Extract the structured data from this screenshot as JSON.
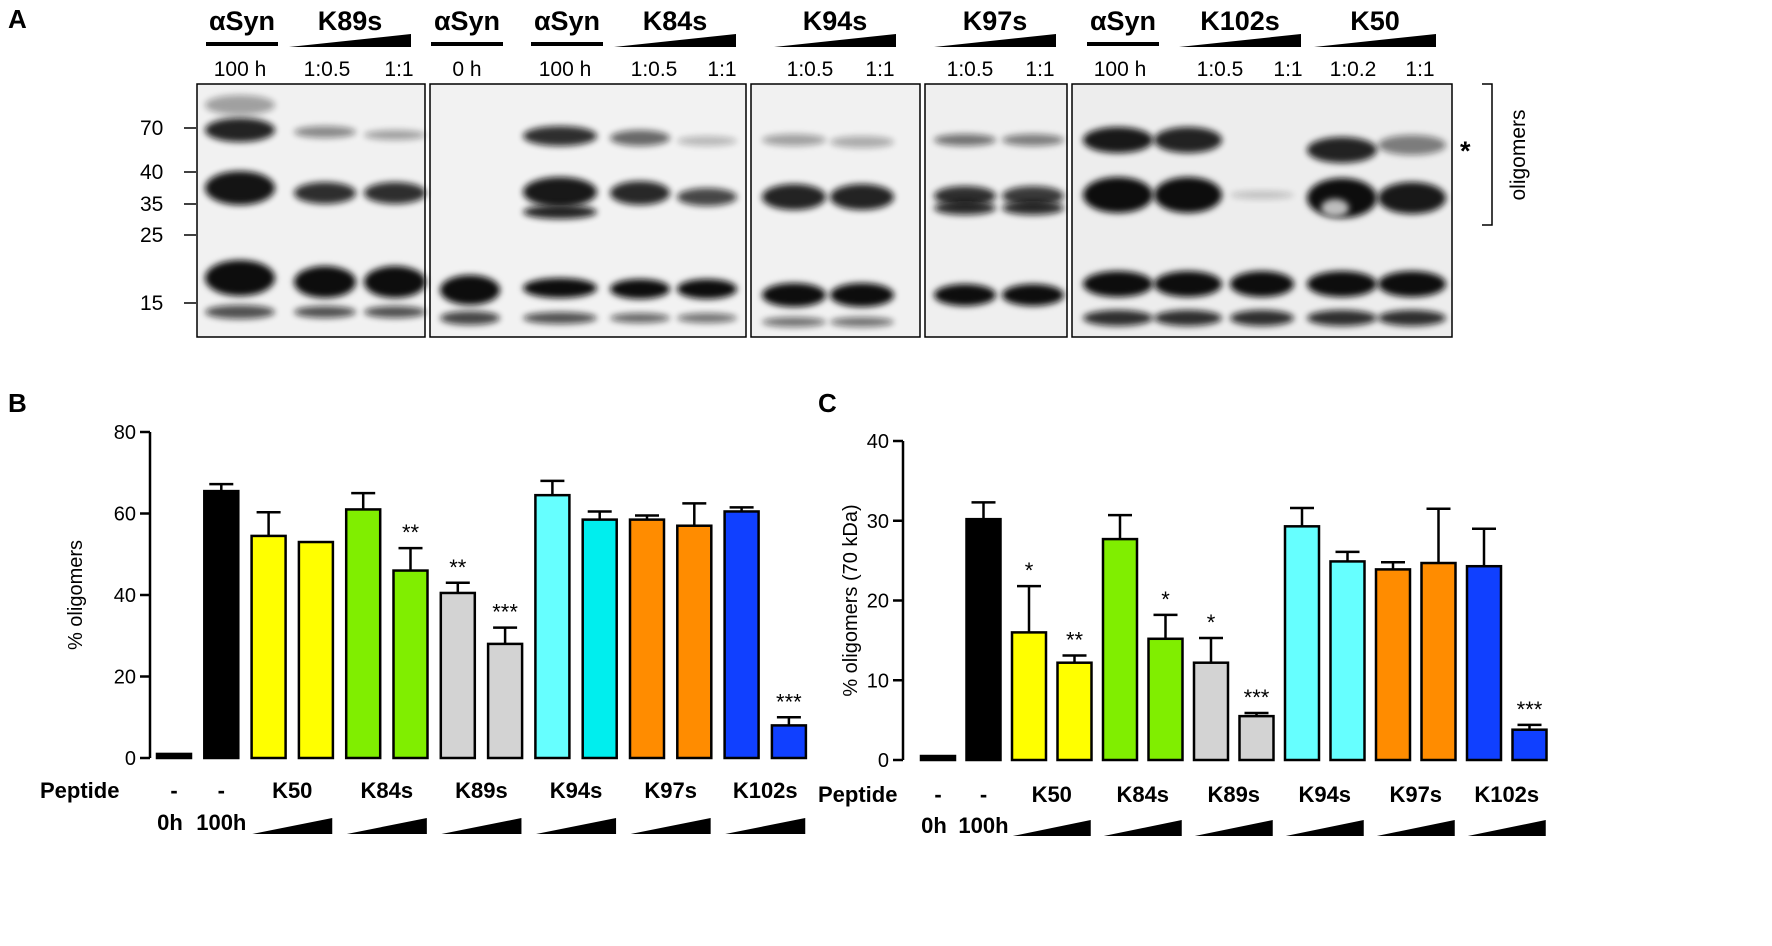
{
  "panels": {
    "a": "A",
    "b": "B",
    "c": "C"
  },
  "blot": {
    "group_labels": [
      {
        "text": "αSyn",
        "x": 242,
        "ramp": false
      },
      {
        "text": "K89s",
        "x": 350,
        "ramp": true
      },
      {
        "text": "αSyn",
        "x": 467,
        "ramp": false
      },
      {
        "text": "αSyn",
        "x": 567,
        "ramp": false
      },
      {
        "text": "K84s",
        "x": 675,
        "ramp": true
      },
      {
        "text": "K94s",
        "x": 835,
        "ramp": true
      },
      {
        "text": "K97s",
        "x": 995,
        "ramp": true
      },
      {
        "text": "αSyn",
        "x": 1123,
        "ramp": false
      },
      {
        "text": "K102s",
        "x": 1240,
        "ramp": true
      },
      {
        "text": "K50",
        "x": 1375,
        "ramp": true
      }
    ],
    "lane_labels": [
      "100 h",
      "1:0.5",
      "1:1",
      "0 h",
      "100 h",
      "1:0.5",
      "1:1",
      "1:0.5",
      "1:1",
      "1:0.5",
      "1:1",
      "100 h",
      "1:0.5",
      "1:1",
      "1:0.2",
      "1:1"
    ],
    "mw_markers": [
      "70",
      "40",
      "35",
      "25",
      "15"
    ],
    "asterisk": "*",
    "bracket_label": "oligomers"
  },
  "chart_data": [
    {
      "type": "bar",
      "panel": "B",
      "ylabel": "% oligomers",
      "ylim": [
        0,
        80
      ],
      "yticks": [
        0,
        20,
        40,
        60,
        80
      ],
      "row_label": "Peptide",
      "time_labels": [
        "0h",
        "100h"
      ],
      "categories": [
        "-",
        "-",
        "K50",
        "K84s",
        "K89s",
        "K94s",
        "K97s",
        "K102s"
      ],
      "bars": [
        {
          "group": "-",
          "value": 1,
          "err": 0,
          "color": "#000000",
          "sig": ""
        },
        {
          "group": "-",
          "value": 65.5,
          "err": 1.7,
          "color": "#000000",
          "sig": ""
        },
        {
          "group": "K50",
          "value": 54.5,
          "err": 5.8,
          "color": "#ffff00",
          "sig": ""
        },
        {
          "group": "K50",
          "value": 53,
          "err": 0,
          "color": "#ffff00",
          "sig": ""
        },
        {
          "group": "K84s",
          "value": 61,
          "err": 4,
          "color": "#80ee00",
          "sig": ""
        },
        {
          "group": "K84s",
          "value": 46,
          "err": 5.5,
          "color": "#80ee00",
          "sig": "**"
        },
        {
          "group": "K89s",
          "value": 40.5,
          "err": 2.5,
          "color": "#d3d3d3",
          "sig": "**"
        },
        {
          "group": "K89s",
          "value": 28,
          "err": 4,
          "color": "#d3d3d3",
          "sig": "***"
        },
        {
          "group": "K94s",
          "value": 64.5,
          "err": 3.5,
          "color": "#66ffff",
          "sig": ""
        },
        {
          "group": "K94s",
          "value": 58.5,
          "err": 2,
          "color": "#00eeee",
          "sig": ""
        },
        {
          "group": "K97s",
          "value": 58.5,
          "err": 1,
          "color": "#ff8c00",
          "sig": ""
        },
        {
          "group": "K97s",
          "value": 57,
          "err": 5.5,
          "color": "#ff8c00",
          "sig": ""
        },
        {
          "group": "K102s",
          "value": 60.5,
          "err": 1,
          "color": "#1040ff",
          "sig": ""
        },
        {
          "group": "K102s",
          "value": 8,
          "err": 2,
          "color": "#1040ff",
          "sig": "***"
        }
      ]
    },
    {
      "type": "bar",
      "panel": "C",
      "ylabel": "% oligomers (70 kDa)",
      "ylim": [
        0,
        40
      ],
      "yticks": [
        0,
        10,
        20,
        30,
        40
      ],
      "row_label": "Peptide",
      "time_labels": [
        "0h",
        "100h"
      ],
      "categories": [
        "-",
        "-",
        "K50",
        "K84s",
        "K89s",
        "K94s",
        "K97s",
        "K102s"
      ],
      "bars": [
        {
          "group": "-",
          "value": 0.5,
          "err": 0,
          "color": "#000000",
          "sig": ""
        },
        {
          "group": "-",
          "value": 30.2,
          "err": 2.1,
          "color": "#000000",
          "sig": ""
        },
        {
          "group": "K50",
          "value": 16,
          "err": 5.8,
          "color": "#ffff00",
          "sig": "*"
        },
        {
          "group": "K50",
          "value": 12.2,
          "err": 0.9,
          "color": "#ffff00",
          "sig": "**"
        },
        {
          "group": "K84s",
          "value": 27.7,
          "err": 3,
          "color": "#80ee00",
          "sig": ""
        },
        {
          "group": "K84s",
          "value": 15.2,
          "err": 3,
          "color": "#80ee00",
          "sig": "*"
        },
        {
          "group": "K89s",
          "value": 12.2,
          "err": 3.1,
          "color": "#d3d3d3",
          "sig": "*"
        },
        {
          "group": "K89s",
          "value": 5.5,
          "err": 0.4,
          "color": "#d3d3d3",
          "sig": "***"
        },
        {
          "group": "K94s",
          "value": 29.3,
          "err": 2.3,
          "color": "#66ffff",
          "sig": ""
        },
        {
          "group": "K94s",
          "value": 24.9,
          "err": 1.2,
          "color": "#66ffff",
          "sig": ""
        },
        {
          "group": "K97s",
          "value": 23.9,
          "err": 0.9,
          "color": "#ff8c00",
          "sig": ""
        },
        {
          "group": "K97s",
          "value": 24.7,
          "err": 6.8,
          "color": "#ff8c00",
          "sig": ""
        },
        {
          "group": "K102s",
          "value": 24.3,
          "err": 4.7,
          "color": "#1040ff",
          "sig": ""
        },
        {
          "group": "K102s",
          "value": 3.8,
          "err": 0.6,
          "color": "#1040ff",
          "sig": "***"
        }
      ]
    }
  ]
}
